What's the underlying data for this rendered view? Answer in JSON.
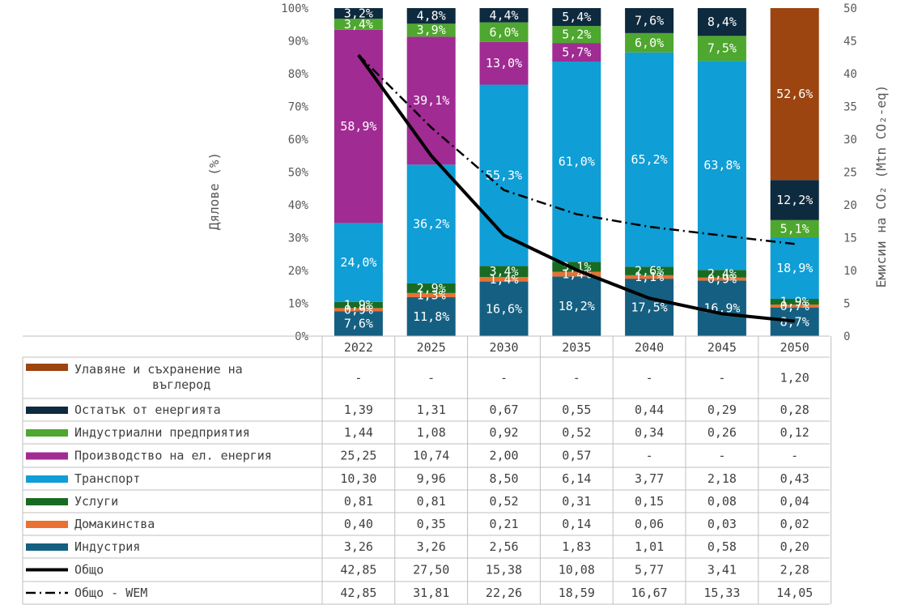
{
  "chart_data": {
    "type": "bar",
    "stacked": true,
    "categories": [
      "2022",
      "2025",
      "2030",
      "2035",
      "2040",
      "2045",
      "2050"
    ],
    "ylabel_left": "Дялове (%)",
    "ylabel_right": "Емисии на CO₂ (Mtn CO₂-eq)",
    "ylim_left": [
      0,
      100
    ],
    "ylim_right": [
      0,
      50
    ],
    "y_ticks_left": [
      "0%",
      "10%",
      "20%",
      "30%",
      "40%",
      "50%",
      "60%",
      "70%",
      "80%",
      "90%",
      "100%"
    ],
    "y_ticks_right": [
      "0",
      "5",
      "10",
      "15",
      "20",
      "25",
      "30",
      "35",
      "40",
      "45",
      "50"
    ],
    "grid": false,
    "series": [
      {
        "name": "Улавяне и съхранение на въглерод",
        "color": "#9C4511",
        "display": [
          "-",
          "-",
          "-",
          "-",
          "-",
          "-",
          "1,20"
        ],
        "values": [
          0,
          0,
          0,
          0,
          0,
          0,
          1.2
        ],
        "labels": [
          "",
          "",
          "",
          "",
          "",
          "",
          "52,6%"
        ]
      },
      {
        "name": "Остатък от енергията",
        "color": "#0E2A3E",
        "display": [
          "1,39",
          "1,31",
          "0,67",
          "0,55",
          "0,44",
          "0,29",
          "0,28"
        ],
        "values": [
          1.39,
          1.31,
          0.67,
          0.55,
          0.44,
          0.29,
          0.28
        ],
        "labels": [
          "3,2%",
          "4,8%",
          "4,4%",
          "5,4%",
          "7,6%",
          "8,4%",
          "12,2%"
        ]
      },
      {
        "name": "Индустриални предприятия",
        "color": "#4EA72E",
        "display": [
          "1,44",
          "1,08",
          "0,92",
          "0,52",
          "0,34",
          "0,26",
          "0,12"
        ],
        "values": [
          1.44,
          1.08,
          0.92,
          0.52,
          0.34,
          0.26,
          0.12
        ],
        "labels": [
          "3,4%",
          "3,9%",
          "6,0%",
          "5,2%",
          "6,0%",
          "7,5%",
          "5,1%"
        ]
      },
      {
        "name": "Производство на ел. енергия",
        "color": "#A02B93",
        "display": [
          "25,25",
          "10,74",
          "2,00",
          "0,57",
          "-",
          "-",
          "-"
        ],
        "values": [
          25.25,
          10.74,
          2.0,
          0.57,
          0,
          0,
          0
        ],
        "labels": [
          "58,9%",
          "39,1%",
          "13,0%",
          "5,7%",
          "",
          "",
          ""
        ]
      },
      {
        "name": "Транспорт",
        "color": "#0F9ED5",
        "display": [
          "10,30",
          "9,96",
          "8,50",
          "6,14",
          "3,77",
          "2,18",
          "0,43"
        ],
        "values": [
          10.3,
          9.96,
          8.5,
          6.14,
          3.77,
          2.18,
          0.43
        ],
        "labels": [
          "24,0%",
          "36,2%",
          "55,3%",
          "61,0%",
          "65,2%",
          "63,8%",
          "18,9%"
        ]
      },
      {
        "name": "Услуги",
        "color": "#196B24",
        "display": [
          "0,81",
          "0,81",
          "0,52",
          "0,31",
          "0,15",
          "0,08",
          "0,04"
        ],
        "values": [
          0.81,
          0.81,
          0.52,
          0.31,
          0.15,
          0.08,
          0.04
        ],
        "labels": [
          "1,9%",
          "2,9%",
          "3,4%",
          "3,1%",
          "2,6%",
          "2,4%",
          "1,9%"
        ]
      },
      {
        "name": "Домакинства",
        "color": "#E97132",
        "display": [
          "0,40",
          "0,35",
          "0,21",
          "0,14",
          "0,06",
          "0,03",
          "0,02"
        ],
        "values": [
          0.4,
          0.35,
          0.21,
          0.14,
          0.06,
          0.03,
          0.02
        ],
        "labels": [
          "0,9%",
          "1,3%",
          "1,4%",
          "1,4%",
          "1,1%",
          "0,9%",
          "0,7%"
        ]
      },
      {
        "name": "Индустрия",
        "color": "#156082",
        "display": [
          "3,26",
          "3,26",
          "2,56",
          "1,83",
          "1,01",
          "0,58",
          "0,20"
        ],
        "values": [
          3.26,
          3.26,
          2.56,
          1.83,
          1.01,
          0.58,
          0.2
        ],
        "labels": [
          "7,6%",
          "11,8%",
          "16,6%",
          "18,2%",
          "17,5%",
          "16,9%",
          "8,7%"
        ]
      }
    ],
    "lines": [
      {
        "name": "Общо",
        "color": "#000000",
        "style": "solid",
        "display": [
          "42,85",
          "27,50",
          "15,38",
          "10,08",
          "5,77",
          "3,41",
          "2,28"
        ],
        "values": [
          42.85,
          27.5,
          15.38,
          10.08,
          5.77,
          3.41,
          2.28
        ]
      },
      {
        "name": "Общо - WEM",
        "color": "#000000",
        "style": "dash-dot",
        "display": [
          "42,85",
          "31,81",
          "22,26",
          "18,59",
          "16,67",
          "15,33",
          "14,05"
        ],
        "values": [
          42.85,
          31.81,
          22.26,
          18.59,
          16.67,
          15.33,
          14.05
        ]
      }
    ]
  }
}
